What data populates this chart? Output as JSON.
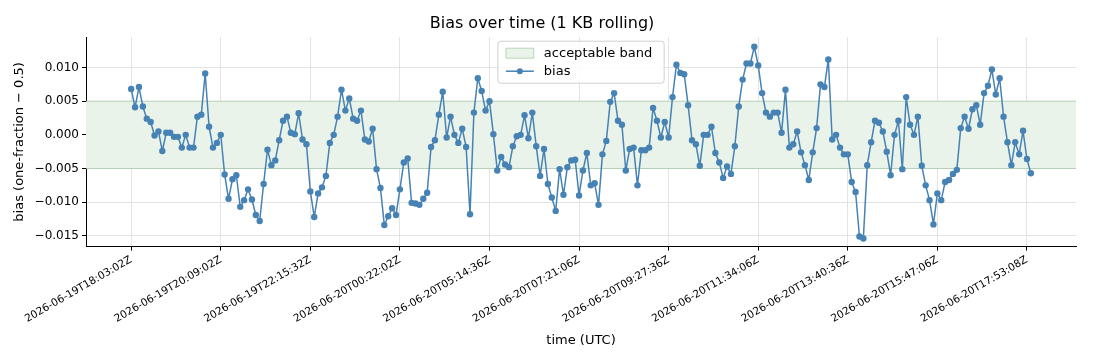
{
  "chart_data": {
    "type": "line",
    "title": "Bias over time (1 KB rolling)",
    "xlabel": "time (UTC)",
    "ylabel": "bias (one-fraction − 0.5)",
    "categories": [
      "2026-06-19T18:03:02Z",
      null,
      null,
      null,
      null,
      null,
      null,
      null,
      null,
      null,
      null,
      null,
      null,
      null,
      null,
      null,
      null,
      null,
      null,
      null,
      null,
      null,
      null,
      "2026-06-19T20:09:02Z",
      null,
      null,
      null,
      null,
      null,
      null,
      null,
      null,
      null,
      null,
      null,
      null,
      null,
      null,
      null,
      null,
      null,
      null,
      null,
      null,
      null,
      null,
      "2026-06-19T22:15:32Z",
      null,
      null,
      null,
      null,
      null,
      null,
      null,
      null,
      null,
      null,
      null,
      null,
      null,
      null,
      null,
      null,
      null,
      null,
      null,
      null,
      null,
      null,
      "2026-06-20T00:22:02Z",
      null,
      null,
      null,
      null,
      null,
      null,
      null,
      null,
      null,
      null,
      null,
      null,
      null,
      null,
      null,
      null,
      null,
      null,
      null,
      null,
      null,
      null,
      "2026-06-20T05:14:36Z",
      null,
      null,
      null,
      null,
      null,
      null,
      null,
      null,
      null,
      null,
      null,
      null,
      null,
      null,
      null,
      null,
      null,
      null,
      null,
      null,
      null,
      null,
      "2026-06-20T07:21:06Z",
      null,
      null,
      null,
      null,
      null,
      null,
      null,
      null,
      null,
      null,
      null,
      null,
      null,
      null,
      null,
      null,
      null,
      null,
      null,
      null,
      null,
      null,
      "2026-06-20T09:27:36Z",
      null,
      null,
      null,
      null,
      null,
      null,
      null,
      null,
      null,
      null,
      null,
      null,
      null,
      null,
      null,
      null,
      null,
      null,
      null,
      null,
      null,
      null,
      "2026-06-20T11:34:06Z",
      null,
      null,
      null,
      null,
      null,
      null,
      null,
      null,
      null,
      null,
      null,
      null,
      null,
      null,
      null,
      null,
      null,
      null,
      null,
      null,
      null,
      null,
      "2026-06-20T13:40:36Z",
      null,
      null,
      null,
      null,
      null,
      null,
      null,
      null,
      null,
      null,
      null,
      null,
      null,
      null,
      null,
      null,
      null,
      null,
      null,
      null,
      null,
      null,
      "2026-06-20T15:47:06Z",
      null,
      null,
      null,
      null,
      null,
      null,
      null,
      null,
      null,
      null,
      null,
      null,
      null,
      null,
      null,
      null,
      null,
      null,
      null,
      null,
      null,
      null,
      "2026-06-20T17:53:08Z",
      null
    ],
    "series": [
      {
        "name": "bias",
        "color": "#4682b4",
        "values": [
          0.0068,
          0.0041,
          0.0071,
          0.0042,
          0.0024,
          0.0019,
          -0.0001,
          0.0005,
          -0.0024,
          0.0003,
          0.0003,
          -0.0003,
          -0.0003,
          -0.0019,
          0.0,
          -0.0019,
          -0.0019,
          0.0027,
          0.003,
          0.0091,
          0.0012,
          -0.0019,
          -0.0012,
          0.0,
          -0.0059,
          -0.0095,
          -0.0066,
          -0.006,
          -0.0107,
          -0.0097,
          -0.0081,
          -0.0096,
          -0.0119,
          -0.0128,
          -0.0073,
          -0.0022,
          -0.0045,
          -0.0038,
          -0.0008,
          0.0021,
          0.0027,
          0.0003,
          0.0001,
          0.0032,
          -0.0007,
          -0.0014,
          -0.0084,
          -0.0122,
          -0.0087,
          -0.0078,
          -0.0061,
          -0.0012,
          0.0,
          0.0027,
          0.0067,
          0.0036,
          0.0054,
          0.0024,
          0.0021,
          0.0036,
          -0.0007,
          -0.001,
          0.0009,
          -0.0051,
          -0.0079,
          -0.0134,
          -0.0121,
          -0.0109,
          -0.0119,
          -0.0081,
          -0.0041,
          -0.0035,
          -0.0101,
          -0.0102,
          -0.0104,
          -0.0095,
          -0.0086,
          -0.0018,
          -0.0008,
          0.003,
          0.0064,
          -0.0004,
          0.0027,
          0.0,
          -0.0012,
          0.0009,
          -0.0018,
          -0.0118,
          0.0033,
          0.0084,
          0.0065,
          0.0036,
          0.005,
          0.0001,
          -0.0053,
          -0.0033,
          -0.0044,
          -0.0048,
          -0.0017,
          -0.0002,
          0.0,
          0.0029,
          -0.0005,
          0.0033,
          -0.0017,
          -0.0061,
          -0.0021,
          -0.0073,
          -0.0093,
          -0.0113,
          -0.0051,
          -0.0089,
          -0.0048,
          -0.0038,
          -0.0037,
          -0.009,
          -0.0053,
          -0.0027,
          -0.0075,
          -0.0072,
          -0.0104,
          -0.0029,
          -0.0009,
          0.0049,
          0.0062,
          0.0021,
          0.0015,
          -0.0053,
          -0.0021,
          -0.0019,
          -0.0075,
          -0.0023,
          -0.0023,
          -0.0019,
          0.004,
          0.0021,
          -0.0004,
          0.0019,
          -0.0004,
          0.0056,
          0.0104,
          0.0092,
          0.009,
          0.0044,
          -0.0008,
          -0.0014,
          -0.0046,
          0.0,
          0.0,
          0.0012,
          -0.0027,
          -0.0041,
          -0.0064,
          -0.0047,
          -0.0058,
          -0.0017,
          0.0042,
          0.0082,
          0.0106,
          0.0106,
          0.0131,
          0.0103,
          0.0062,
          0.0033,
          0.0027,
          0.0033,
          0.0033,
          0.0003,
          0.0067,
          -0.0019,
          -0.0014,
          0.0005,
          -0.0026,
          -0.0045,
          -0.0067,
          -0.0026,
          0.001,
          0.0075,
          0.0071,
          0.0112,
          -0.0007,
          0.0,
          -0.0019,
          -0.0029,
          -0.0029,
          -0.007,
          -0.0085,
          -0.0151,
          -0.0154,
          -0.0045,
          -0.0011,
          0.0021,
          0.0018,
          0.0005,
          -0.0025,
          -0.006,
          0.0,
          0.0021,
          -0.0051,
          0.0056,
          0.0015,
          0.0,
          0.0027,
          -0.0046,
          -0.0075,
          -0.0097,
          -0.0133,
          -0.0087,
          -0.0097,
          -0.007,
          -0.0067,
          -0.0058,
          -0.0052,
          0.001,
          0.0027,
          0.0009,
          0.0038,
          0.0044,
          0.0015,
          0.0062,
          0.0073,
          0.0097,
          0.006,
          0.0084,
          0.0027,
          -0.0011,
          -0.0045,
          -0.0011,
          -0.0029,
          0.0006,
          -0.0036,
          -0.0057
        ]
      }
    ],
    "ylim": [
      -0.0166,
      0.0145
    ],
    "yticks": [
      {
        "value": -0.015,
        "label": "−0.015"
      },
      {
        "value": -0.01,
        "label": "−0.010"
      },
      {
        "value": -0.005,
        "label": "−0.005"
      },
      {
        "value": 0,
        "label": "0.000"
      },
      {
        "value": 0.005,
        "label": "0.005"
      },
      {
        "value": 0.01,
        "label": "0.010"
      }
    ],
    "bands": [
      {
        "axis": "y",
        "from": -0.005,
        "to": 0.005,
        "label": "acceptable band",
        "color": "#e9f3e9"
      }
    ],
    "grid": true,
    "legend": "top",
    "marker": "circle",
    "line_style": "solid"
  }
}
